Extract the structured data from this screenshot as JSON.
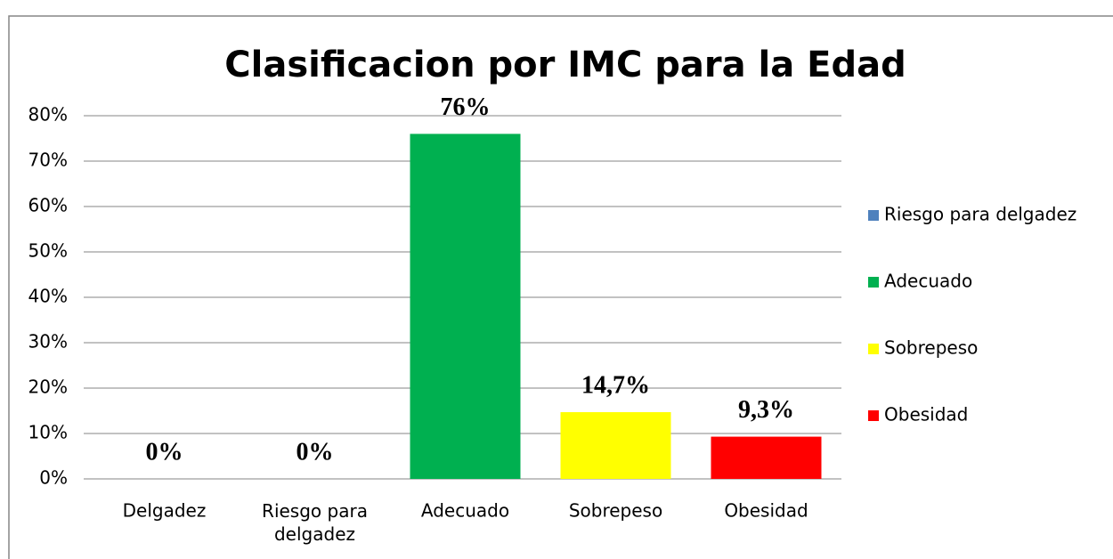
{
  "chart_data": {
    "type": "bar",
    "title": "Clasificacion por IMC para la Edad",
    "categories": [
      "Delgadez",
      "Riesgo para delgadez",
      "Adecuado",
      "Sobrepeso",
      "Obesidad"
    ],
    "values": [
      0,
      0,
      76,
      14.7,
      9.3
    ],
    "value_labels": [
      "0%",
      "0%",
      "76%",
      "14,7%",
      "9,3%"
    ],
    "colors": [
      "#4f81bd",
      "#4f81bd",
      "#00b050",
      "#ffff00",
      "#ff0000"
    ],
    "legend": [
      "Riesgo para delgadez",
      "Adecuado",
      "Sobrepeso",
      "Obesidad"
    ],
    "legend_position": "right",
    "ylim": [
      0,
      80
    ],
    "yticks": [
      {
        "value": 0,
        "label": "0%"
      },
      {
        "value": 10,
        "label": "10%"
      },
      {
        "value": 20,
        "label": "20%"
      },
      {
        "value": 30,
        "label": "30%"
      },
      {
        "value": 40,
        "label": "40%"
      },
      {
        "value": 50,
        "label": "50%"
      },
      {
        "value": 60,
        "label": "60%"
      },
      {
        "value": 70,
        "label": "70%"
      },
      {
        "value": 80,
        "label": "80%"
      }
    ],
    "grid": true
  }
}
